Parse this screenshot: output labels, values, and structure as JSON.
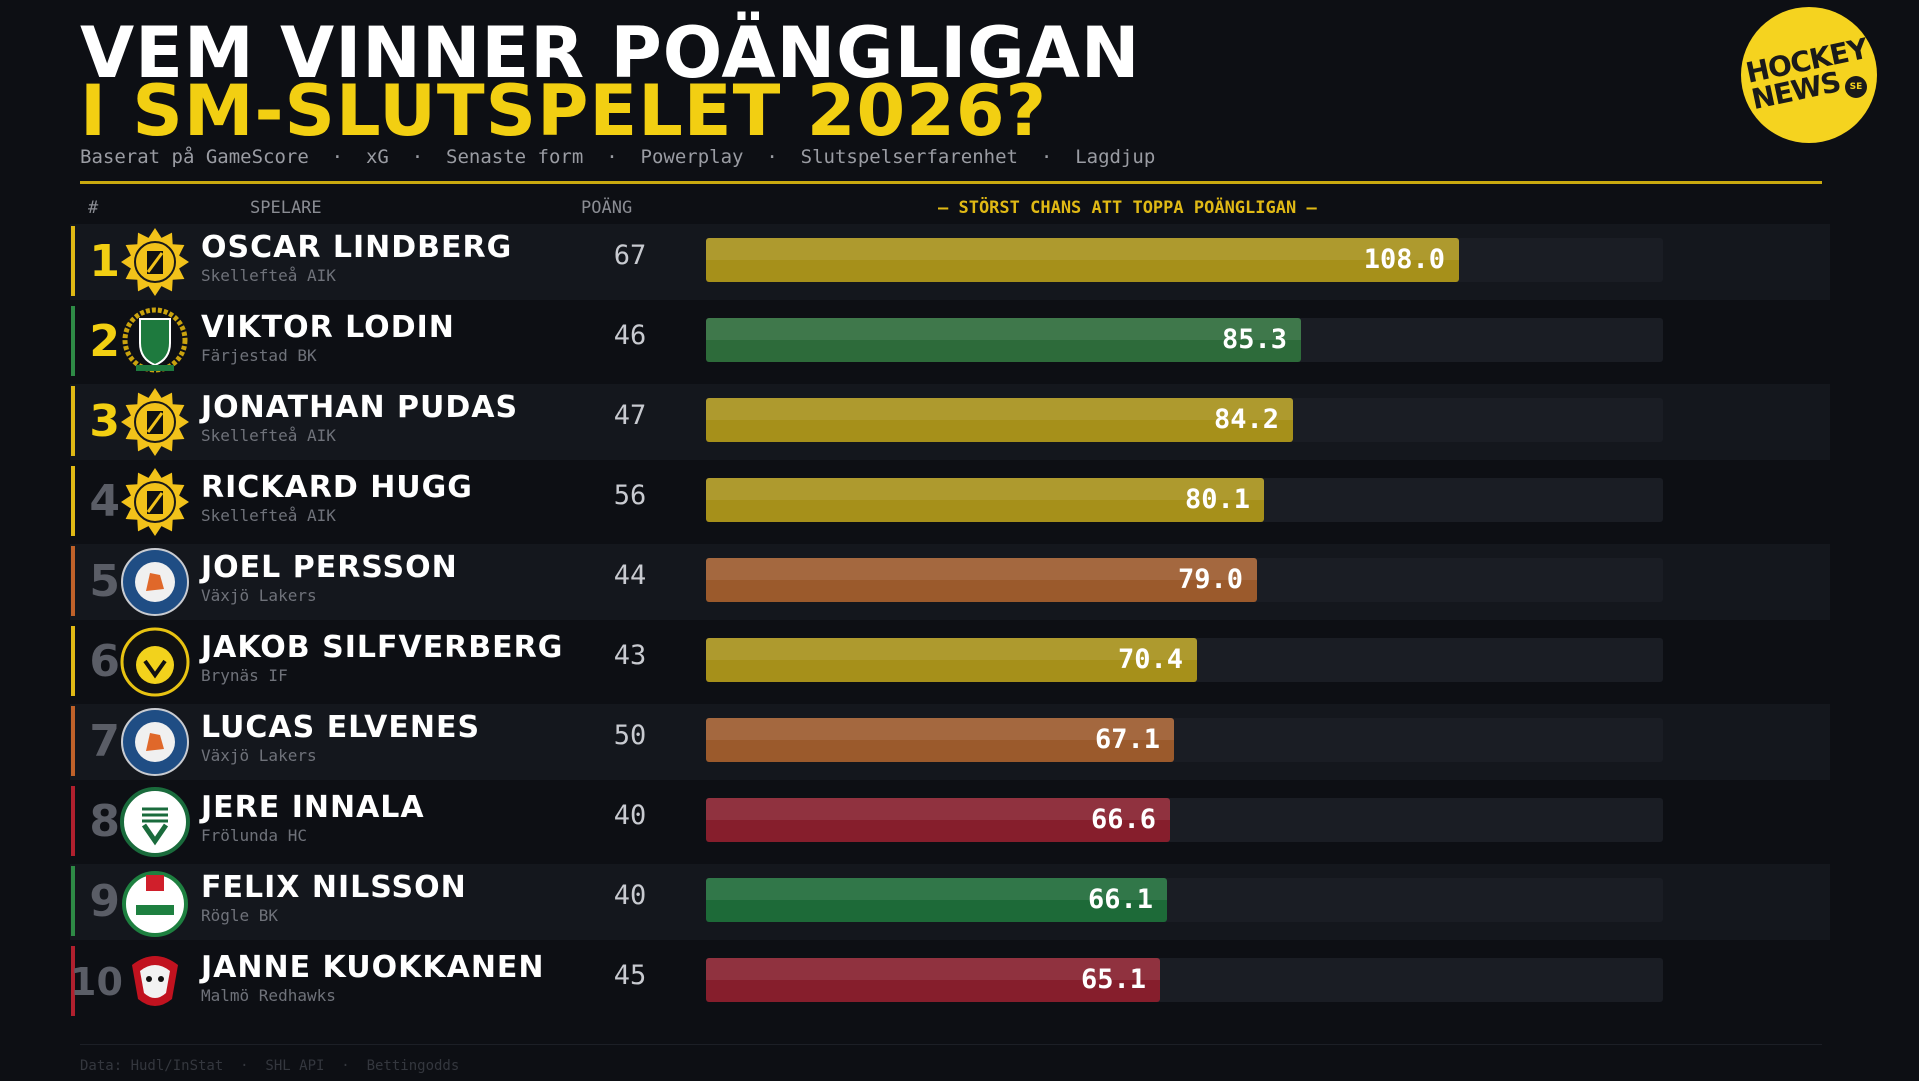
{
  "title": {
    "line1": "VEM VINNER POÄNGLIGAN",
    "line2": "I SM-SLUTSPELET 2026?",
    "subtitle": "Baserat på GameScore  ·  xG  ·  Senaste form  ·  Powerplay  ·  Slutspelserfarenhet  ·  Lagdjup"
  },
  "logo": {
    "line1": "HOCKEY",
    "line2": "NEWS",
    "suffix": "SE"
  },
  "header": {
    "rank": "#",
    "player": "SPELARE",
    "points": "POÄNG",
    "chance": "— STÖRST CHANS ATT TOPPA POÄNGLIGAN —"
  },
  "colors": {
    "gold": "#f2cf12",
    "bar_gold": "#a6901a",
    "bar_green": "#2d6b3a",
    "bar_green_dark": "#1d6a38",
    "bar_orange": "#9b5a2c",
    "bar_red": "#861e2c",
    "rank_dim": "#5a5d66"
  },
  "chart_data": {
    "type": "bar",
    "orientation": "horizontal",
    "title": "STÖRST CHANS ATT TOPPA POÄNGLIGAN",
    "xlim": [
      0,
      137.3
    ],
    "rows": [
      {
        "rank": "1",
        "player": "OSCAR LINDBERG",
        "team": "Skellefteå AIK",
        "points": "67",
        "value": 108.0,
        "color": "#a6901a",
        "accent": "#e0b915",
        "rank_color": "#f2cf12",
        "badge": "aik"
      },
      {
        "rank": "2",
        "player": "VIKTOR LODIN",
        "team": "Färjestad BK",
        "points": "46",
        "value": 85.3,
        "color": "#2d6b3a",
        "accent": "#2e8b46",
        "rank_color": "#f2cf12",
        "badge": "fbk"
      },
      {
        "rank": "3",
        "player": "JONATHAN PUDAS",
        "team": "Skellefteå AIK",
        "points": "47",
        "value": 84.2,
        "color": "#a6901a",
        "accent": "#e0b915",
        "rank_color": "#f2cf12",
        "badge": "aik"
      },
      {
        "rank": "4",
        "player": "RICKARD HUGG",
        "team": "Skellefteå AIK",
        "points": "56",
        "value": 80.1,
        "color": "#a6901a",
        "accent": "#e0b915",
        "rank_color": "#5a5d66",
        "badge": "aik"
      },
      {
        "rank": "5",
        "player": "JOEL PERSSON",
        "team": "Växjö Lakers",
        "points": "44",
        "value": 79.0,
        "color": "#9b5a2c",
        "accent": "#c0622a",
        "rank_color": "#5a5d66",
        "badge": "vlh"
      },
      {
        "rank": "6",
        "player": "JAKOB SILFVERBERG",
        "team": "Brynäs IF",
        "points": "43",
        "value": 70.4,
        "color": "#a6901a",
        "accent": "#e0b915",
        "rank_color": "#5a5d66",
        "badge": "bif"
      },
      {
        "rank": "7",
        "player": "LUCAS ELVENES",
        "team": "Växjö Lakers",
        "points": "50",
        "value": 67.1,
        "color": "#9b5a2c",
        "accent": "#c0622a",
        "rank_color": "#5a5d66",
        "badge": "vlh"
      },
      {
        "rank": "8",
        "player": "JERE INNALA",
        "team": "Frölunda HC",
        "points": "40",
        "value": 66.6,
        "color": "#861e2c",
        "accent": "#b0202e",
        "rank_color": "#5a5d66",
        "badge": "fhc"
      },
      {
        "rank": "9",
        "player": "FELIX NILSSON",
        "team": "Rögle BK",
        "points": "40",
        "value": 66.1,
        "color": "#1d6a38",
        "accent": "#2e8b46",
        "rank_color": "#5a5d66",
        "badge": "rbk"
      },
      {
        "rank": "10",
        "player": "JANNE KUOKKANEN",
        "team": "Malmö Redhawks",
        "points": "45",
        "value": 65.1,
        "color": "#861e2c",
        "accent": "#b0202e",
        "rank_color": "#5a5d66",
        "badge": "mif"
      }
    ]
  },
  "footer": "Data: Hudl/InStat  ·  SHL API  ·  Bettingodds"
}
